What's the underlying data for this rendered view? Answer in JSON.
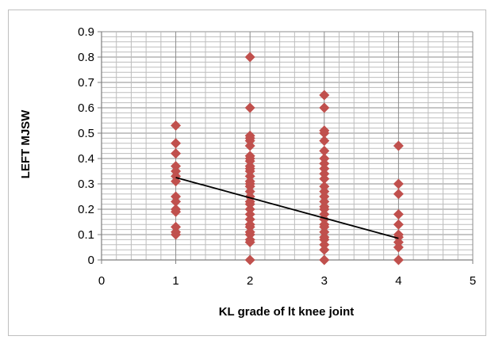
{
  "chart_data": {
    "type": "scatter",
    "title": "",
    "xlabel": "KL grade of lt knee joint",
    "ylabel": "LEFT MJSW",
    "xlim": [
      0,
      5
    ],
    "ylim": [
      0,
      0.9
    ],
    "x_ticks": [
      "0",
      "1",
      "2",
      "3",
      "4",
      "5"
    ],
    "y_ticks": [
      "0",
      "0.1",
      "0.2",
      "0.3",
      "0.4",
      "0.5",
      "0.6",
      "0.7",
      "0.8",
      "0.9"
    ],
    "grid": "major and minor",
    "legend": "none",
    "marker": "diamond",
    "marker_color": "#c0504d",
    "points": [
      [
        1,
        0.53
      ],
      [
        1,
        0.46
      ],
      [
        1,
        0.42
      ],
      [
        1,
        0.37
      ],
      [
        1,
        0.35
      ],
      [
        1,
        0.33
      ],
      [
        1,
        0.31
      ],
      [
        1,
        0.25
      ],
      [
        1,
        0.23
      ],
      [
        1,
        0.2
      ],
      [
        1,
        0.19
      ],
      [
        1,
        0.13
      ],
      [
        1,
        0.11
      ],
      [
        1,
        0.1
      ],
      [
        2,
        0.8
      ],
      [
        2,
        0.6
      ],
      [
        2,
        0.49
      ],
      [
        2,
        0.48
      ],
      [
        2,
        0.47
      ],
      [
        2,
        0.45
      ],
      [
        2,
        0.41
      ],
      [
        2,
        0.4
      ],
      [
        2,
        0.39
      ],
      [
        2,
        0.37
      ],
      [
        2,
        0.36
      ],
      [
        2,
        0.35
      ],
      [
        2,
        0.33
      ],
      [
        2,
        0.31
      ],
      [
        2,
        0.3
      ],
      [
        2,
        0.29
      ],
      [
        2,
        0.27
      ],
      [
        2,
        0.25
      ],
      [
        2,
        0.23
      ],
      [
        2,
        0.22
      ],
      [
        2,
        0.2
      ],
      [
        2,
        0.18
      ],
      [
        2,
        0.16
      ],
      [
        2,
        0.14
      ],
      [
        2,
        0.13
      ],
      [
        2,
        0.11
      ],
      [
        2,
        0.1
      ],
      [
        2,
        0.08
      ],
      [
        2,
        0.07
      ],
      [
        2,
        0.0
      ],
      [
        3,
        0.65
      ],
      [
        3,
        0.6
      ],
      [
        3,
        0.51
      ],
      [
        3,
        0.5
      ],
      [
        3,
        0.47
      ],
      [
        3,
        0.43
      ],
      [
        3,
        0.4
      ],
      [
        3,
        0.38
      ],
      [
        3,
        0.36
      ],
      [
        3,
        0.34
      ],
      [
        3,
        0.32
      ],
      [
        3,
        0.29
      ],
      [
        3,
        0.27
      ],
      [
        3,
        0.25
      ],
      [
        3,
        0.23
      ],
      [
        3,
        0.21
      ],
      [
        3,
        0.2
      ],
      [
        3,
        0.18
      ],
      [
        3,
        0.16
      ],
      [
        3,
        0.14
      ],
      [
        3,
        0.13
      ],
      [
        3,
        0.11
      ],
      [
        3,
        0.09
      ],
      [
        3,
        0.08
      ],
      [
        3,
        0.06
      ],
      [
        3,
        0.04
      ],
      [
        3,
        0.0
      ],
      [
        4,
        0.45
      ],
      [
        4,
        0.3
      ],
      [
        4,
        0.26
      ],
      [
        4,
        0.18
      ],
      [
        4,
        0.14
      ],
      [
        4,
        0.1
      ],
      [
        4,
        0.09
      ],
      [
        4,
        0.07
      ],
      [
        4,
        0.05
      ],
      [
        4,
        0.0
      ]
    ],
    "trendline": {
      "x": [
        1,
        4
      ],
      "y": [
        0.325,
        0.085
      ],
      "color": "#000000"
    }
  }
}
